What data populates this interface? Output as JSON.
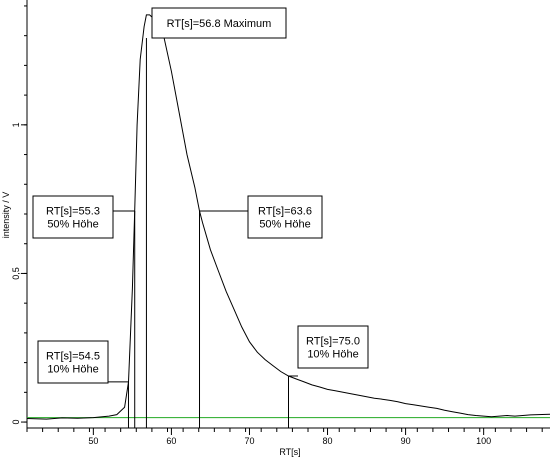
{
  "chart_data": {
    "type": "line",
    "title": "",
    "xlabel": "RT[s]",
    "ylabel": "intensity / V",
    "xlim": [
      41.5,
      108.5
    ],
    "ylim": [
      -0.02,
      1.42
    ],
    "x_ticks": [
      50,
      60,
      70,
      80,
      90,
      100
    ],
    "x_tick_labels": [
      "50",
      "60",
      "70",
      "80",
      "90",
      "100"
    ],
    "y_ticks": [
      0,
      0.5,
      1
    ],
    "y_tick_labels": [
      "0",
      "0,5",
      "1"
    ],
    "grid": false,
    "baseline": {
      "y": 0.015,
      "color": "#22aa22"
    },
    "series": [
      {
        "color": "#000000",
        "x": [
          41.5,
          44,
          46,
          48,
          50,
          52,
          53,
          54,
          54.5,
          55,
          55.3,
          55.6,
          56,
          56.5,
          56.8,
          57.2,
          57.6,
          58,
          59,
          60,
          61,
          62,
          63,
          63.6,
          64,
          65,
          66,
          67,
          68,
          69,
          70,
          71,
          72,
          73,
          74,
          75,
          76,
          77,
          78,
          79,
          80,
          81,
          82,
          83,
          84,
          85,
          86,
          87,
          88,
          89,
          90,
          91,
          92,
          93,
          94,
          95,
          96,
          97,
          98,
          99,
          100,
          101,
          102,
          103,
          104,
          105,
          106,
          107,
          108.5
        ],
        "y": [
          0.012,
          0.01,
          0.014,
          0.013,
          0.015,
          0.02,
          0.025,
          0.05,
          0.135,
          0.45,
          0.71,
          1.0,
          1.22,
          1.33,
          1.37,
          1.37,
          1.36,
          1.35,
          1.3,
          1.18,
          1.04,
          0.9,
          0.79,
          0.71,
          0.67,
          0.58,
          0.51,
          0.44,
          0.38,
          0.32,
          0.27,
          0.235,
          0.21,
          0.19,
          0.17,
          0.155,
          0.145,
          0.135,
          0.125,
          0.118,
          0.11,
          0.105,
          0.1,
          0.095,
          0.09,
          0.085,
          0.08,
          0.077,
          0.073,
          0.068,
          0.062,
          0.058,
          0.054,
          0.05,
          0.046,
          0.04,
          0.035,
          0.03,
          0.025,
          0.022,
          0.02,
          0.018,
          0.02,
          0.022,
          0.02,
          0.022,
          0.024,
          0.025,
          0.026
        ]
      }
    ],
    "annotations": [
      {
        "text": [
          "RT[s]=56.8 Maximum"
        ],
        "x": 56.8,
        "y_end": 1.38
      },
      {
        "text": [
          "RT[s]=55.3",
          "50% Höhe"
        ],
        "x": 55.3,
        "y_end": 0.71
      },
      {
        "text": [
          "RT[s]=63.6",
          "50% Höhe"
        ],
        "x": 63.6,
        "y_end": 0.71
      },
      {
        "text": [
          "RT[s]=54.5",
          "10% Höhe"
        ],
        "x": 54.5,
        "y_end": 0.135
      },
      {
        "text": [
          "RT[s]=75.0",
          "10% Höhe"
        ],
        "x": 75.0,
        "y_end": 0.155
      }
    ]
  }
}
